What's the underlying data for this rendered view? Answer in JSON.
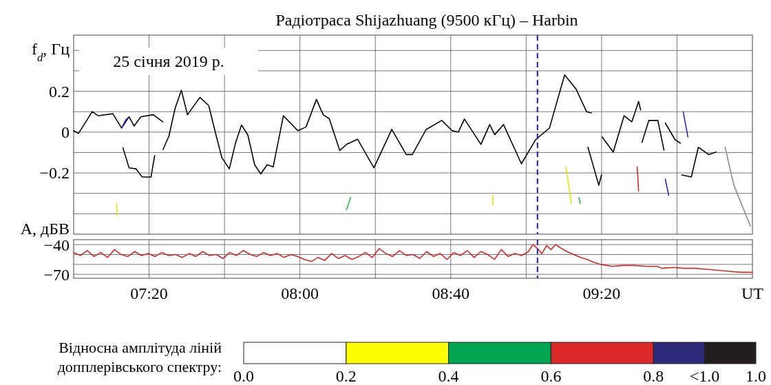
{
  "chart_data": [
    {
      "type": "line",
      "title": "Радіотраса Shijazhuang (9500 кГц) – Harbin",
      "ylabel": "f$_{d}$, Гц",
      "annotations": [
        "25 січня 2019 р."
      ],
      "xlim": [
        7,
        10
      ],
      "ylim": [
        -0.5,
        0.475
      ],
      "xticks": [
        {
          "value": 7.3333,
          "label": null
        },
        {
          "value": 7.6667,
          "label": null
        },
        {
          "value": 8,
          "label": null
        },
        {
          "value": 8.3333,
          "label": null
        },
        {
          "value": 8.6667,
          "label": null
        },
        {
          "value": 9,
          "label": null
        },
        {
          "value": 9.3333,
          "label": null
        },
        {
          "value": 9.6667,
          "label": null
        }
      ],
      "yticks": [
        {
          "value": -0.4,
          "label": null
        },
        {
          "value": -0.3,
          "label": null
        },
        {
          "value": -0.2,
          "label": "−0.2"
        },
        {
          "value": -0.1,
          "label": null
        },
        0,
        {
          "value": 0.1,
          "label": null
        },
        0.2,
        {
          "value": 0.3,
          "label": null
        },
        {
          "value": 0.4,
          "label": null
        }
      ],
      "tick_labels": "y",
      "grid": true,
      "ref_lines": [
        {
          "axis": "x",
          "value": 9.05,
          "color": "#1f1f9e",
          "line_style": "dashed"
        }
      ],
      "clabel": "Відносна амплітуда ліній допплерівського спектру:",
      "clim": [
        0,
        1
      ],
      "cticks": [
        {
          "value": 0,
          "label": "0.0"
        },
        {
          "value": 0.2,
          "label": "0.2"
        },
        {
          "value": 0.4,
          "label": "0.4"
        },
        {
          "value": 0.6,
          "label": "0.6"
        },
        {
          "value": 0.8,
          "label": "0.8"
        },
        {
          "value": 0.9,
          "label": "<1.0"
        },
        {
          "value": 1,
          "label": "1.0"
        }
      ],
      "series": [
        {
          "color": "#000000",
          "x": [
            7,
            7.021,
            7.082,
            7.109,
            7.173,
            7.212,
            7.245,
            7.267,
            7.297,
            7.352,
            7.394
          ],
          "values": [
            0.007,
            -0.007,
            0.1,
            0.08,
            0.09,
            0.02,
            0.075,
            0.03,
            0.075,
            0.085,
            0.05
          ]
        },
        {
          "color": "#000000",
          "x": [
            7.395,
            7.421,
            7.448,
            7.476,
            7.503,
            7.558,
            7.597,
            7.627,
            7.655,
            7.688,
            7.715,
            7.742,
            7.77,
            7.8,
            7.827,
            7.855,
            7.882,
            7.927,
            7.991,
            8.027,
            8.073,
            8.103,
            8.13,
            8.176,
            8.206,
            8.255,
            8.327,
            8.406,
            8.47,
            8.497,
            8.558,
            8.627,
            8.673,
            8.7,
            8.727,
            8.8,
            8.839,
            8.861,
            8.9,
            8.979,
            9.042,
            9.103,
            9.17,
            9.221,
            9.267,
            9.288
          ],
          "values": [
            -0.085,
            -0.02,
            0.115,
            0.205,
            0.085,
            0.17,
            0.13,
            -0.005,
            -0.125,
            -0.18,
            -0.055,
            0.035,
            -0.015,
            -0.16,
            -0.205,
            -0.16,
            -0.17,
            0.08,
            0.007,
            0.025,
            0.16,
            0.085,
            0.065,
            -0.09,
            -0.06,
            -0.035,
            -0.175,
            0.013,
            -0.11,
            -0.11,
            0.013,
            0.057,
            0.007,
            0,
            0.064,
            -0.06,
            0.037,
            -0.013,
            0.037,
            -0.155,
            -0.037,
            0.02,
            0.28,
            0.21,
            0.1,
            0.094
          ]
        },
        {
          "color": "#000000",
          "x": [
            7.218,
            7.245,
            7.276,
            7.303,
            7.342,
            7.358
          ],
          "values": [
            -0.077,
            -0.175,
            -0.18,
            -0.22,
            -0.22,
            -0.115
          ]
        },
        {
          "color": "#000000",
          "x": [
            9.273,
            9.321,
            9.333
          ],
          "values": [
            -0.074,
            -0.26,
            -0.21
          ]
        },
        {
          "color": "#000000",
          "x": [
            9.336,
            9.385,
            9.433,
            9.467,
            9.497,
            9.506
          ],
          "values": [
            -0.024,
            -0.098,
            0.08,
            0.05,
            0.15,
            0.108
          ]
        },
        {
          "color": "#000000",
          "x": [
            9.512,
            9.542,
            9.582,
            9.609
          ],
          "values": [
            -0.05,
            0.057,
            0.057,
            -0.088
          ]
        },
        {
          "color": "#000000",
          "x": [
            9.615,
            9.658,
            9.682
          ],
          "values": [
            0.044,
            -0.037,
            -0.054
          ]
        },
        {
          "color": "#000000",
          "x": [
            9.688,
            9.73,
            9.761,
            9.806,
            9.839
          ],
          "values": [
            -0.21,
            -0.22,
            -0.074,
            -0.11,
            -0.098
          ]
        },
        {
          "color": "#8c8c8c",
          "x": [
            9.879,
            9.918,
            9.991
          ],
          "values": [
            -0.074,
            -0.26,
            -0.46
          ]
        },
        {
          "color": "#2e2ab0",
          "x": [
            7.212,
            7.23,
            7.245
          ],
          "values": [
            0.02,
            0.06,
            0.075
          ]
        },
        {
          "color": "#e6e600",
          "x": [
            7.19,
            7.192
          ],
          "values": [
            -0.35,
            -0.41
          ]
        },
        {
          "color": "#2db34a",
          "x": [
            8.206,
            8.224
          ],
          "values": [
            -0.38,
            -0.32
          ]
        },
        {
          "color": "#e6e600",
          "x": [
            8.852,
            8.853
          ],
          "values": [
            -0.31,
            -0.36
          ]
        },
        {
          "color": "#e6e600",
          "x": [
            9.176,
            9.2
          ],
          "values": [
            -0.17,
            -0.35
          ]
        },
        {
          "color": "#2db34a",
          "x": [
            9.233,
            9.239
          ],
          "values": [
            -0.32,
            -0.35
          ]
        },
        {
          "color": "#dc2828",
          "x": [
            9.491,
            9.497
          ],
          "values": [
            -0.17,
            -0.29
          ]
        },
        {
          "color": "#2e2ab0",
          "x": [
            9.615,
            9.63
          ],
          "values": [
            -0.23,
            -0.31
          ]
        },
        {
          "color": "#2e2ab0",
          "x": [
            9.694,
            9.715
          ],
          "values": [
            0.1,
            -0.024
          ]
        }
      ]
    },
    {
      "type": "line",
      "ylabel": "A, дБВ",
      "xlabel": "UT",
      "xlim": [
        7,
        10
      ],
      "ylim": [
        -74,
        -35
      ],
      "xticks": [
        {
          "value": 7.3333,
          "label": "07:20"
        },
        {
          "value": 7.6667,
          "label": null
        },
        {
          "value": 8,
          "label": "08:00"
        },
        {
          "value": 8.3333,
          "label": null
        },
        {
          "value": 8.6667,
          "label": "08:40"
        },
        {
          "value": 9,
          "label": null
        },
        {
          "value": 9.3333,
          "label": "09:20"
        },
        {
          "value": 9.6667,
          "label": null
        }
      ],
      "yticks": [
        {
          "value": -70,
          "label": "−70"
        },
        {
          "value": -60,
          "label": null
        },
        {
          "value": -50,
          "label": null
        },
        {
          "value": -40,
          "label": "−40"
        }
      ],
      "grid": true,
      "ref_lines": [
        {
          "axis": "x",
          "value": 9.05,
          "color": "#1f1f9e",
          "line_style": "dashed"
        }
      ],
      "series": [
        {
          "color": "#d42a2a",
          "x": [
            7,
            7.03,
            7.06,
            7.09,
            7.12,
            7.15,
            7.18,
            7.21,
            7.24,
            7.27,
            7.3,
            7.33,
            7.36,
            7.39,
            7.42,
            7.45,
            7.48,
            7.51,
            7.54,
            7.57,
            7.6,
            7.63,
            7.66,
            7.69,
            7.72,
            7.75,
            7.78,
            7.81,
            7.84,
            7.87,
            7.9,
            7.93,
            7.96,
            7.99,
            8.02,
            8.05,
            8.08,
            8.11,
            8.14,
            8.17,
            8.2,
            8.23,
            8.26,
            8.29,
            8.32,
            8.35,
            8.38,
            8.41,
            8.44,
            8.47,
            8.5,
            8.53,
            8.56,
            8.59,
            8.62,
            8.65,
            8.68,
            8.71,
            8.74,
            8.77,
            8.8,
            8.83,
            8.86,
            8.89,
            8.92,
            8.95,
            8.98,
            9.01,
            9.03,
            9.05,
            9.07,
            9.09,
            9.11,
            9.13,
            9.15,
            9.18,
            9.21,
            9.24,
            9.27,
            9.3,
            9.33,
            9.38,
            9.43,
            9.48,
            9.53,
            9.58,
            9.6,
            9.65,
            9.7,
            9.75,
            9.8,
            9.85,
            9.9,
            9.95,
            10
          ],
          "values": [
            -48,
            -51,
            -46,
            -52,
            -48,
            -53,
            -45,
            -50,
            -52,
            -47,
            -51,
            -49,
            -52,
            -48,
            -51,
            -50,
            -53,
            -49,
            -52,
            -47,
            -51,
            -50,
            -54,
            -48,
            -51,
            -46,
            -50,
            -52,
            -48,
            -51,
            -49,
            -53,
            -50,
            -52,
            -55,
            -57,
            -53,
            -56,
            -49,
            -54,
            -51,
            -55,
            -52,
            -48,
            -53,
            -44,
            -49,
            -52,
            -46,
            -51,
            -50,
            -54,
            -47,
            -52,
            -49,
            -55,
            -48,
            -51,
            -46,
            -53,
            -47,
            -50,
            -55,
            -45,
            -52,
            -49,
            -51,
            -47,
            -40,
            -44,
            -49,
            -41,
            -45,
            -40,
            -43,
            -47,
            -50,
            -53,
            -55,
            -58,
            -60,
            -62,
            -61,
            -61,
            -62,
            -62,
            -64,
            -63,
            -64,
            -64,
            -65,
            -66,
            -67,
            -68,
            -68
          ]
        }
      ]
    }
  ]
}
